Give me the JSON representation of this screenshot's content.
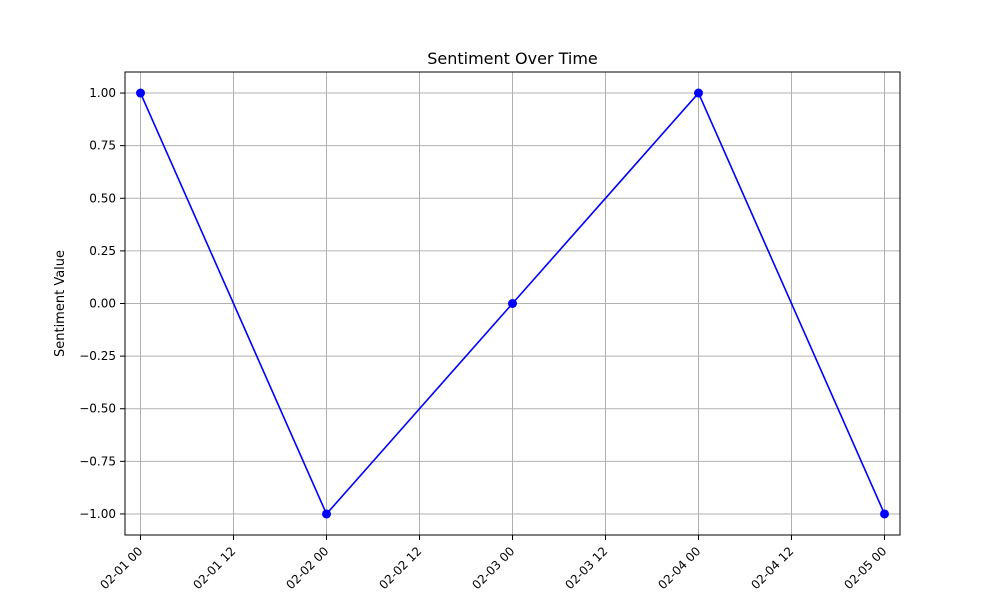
{
  "chart_data": {
    "type": "line",
    "title": "Sentiment Over Time",
    "xlabel": "",
    "ylabel": "Sentiment Value",
    "x": [
      "02-01 00",
      "02-02 00",
      "02-03 00",
      "02-04 00",
      "02-05 00"
    ],
    "series": [
      {
        "values": [
          1.0,
          -1.0,
          0.0,
          1.0,
          -1.0
        ],
        "color": "#0000ff",
        "marker": "circle"
      }
    ],
    "x_ticks": [
      "02-01 00",
      "02-01 12",
      "02-02 00",
      "02-02 12",
      "02-03 00",
      "02-03 12",
      "02-04 00",
      "02-04 12",
      "02-05 00"
    ],
    "y_ticks": [
      1.0,
      0.75,
      0.5,
      0.25,
      0.0,
      -0.25,
      -0.5,
      -0.75,
      -1.0
    ],
    "y_tick_labels": [
      "1.00",
      "0.75",
      "0.50",
      "0.25",
      "0.00",
      "−0.25",
      "−0.50",
      "−0.75",
      "−1.00"
    ],
    "xlim": [
      "01-31 22",
      "02-05 02"
    ],
    "ylim": [
      -1.1,
      1.1
    ],
    "grid": true,
    "tick_label_rotation_deg": 45,
    "colors": {
      "line": "#0000ff",
      "grid": "#b0b0b0",
      "axes": "#000000",
      "background": "#ffffff"
    }
  }
}
